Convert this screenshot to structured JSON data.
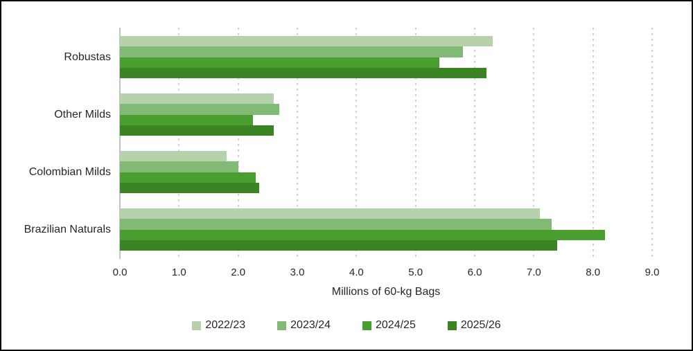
{
  "chart_data": {
    "type": "bar",
    "orientation": "horizontal",
    "title": "",
    "categories": [
      "Robustas",
      "Other Milds",
      "Colombian Milds",
      "Brazilian Naturals"
    ],
    "series": [
      {
        "name": "2022/23",
        "color": "#b6d2ad",
        "values": [
          6.3,
          2.6,
          1.8,
          7.1
        ]
      },
      {
        "name": "2023/24",
        "color": "#80ba74",
        "values": [
          5.8,
          2.7,
          2.0,
          7.3
        ]
      },
      {
        "name": "2024/25",
        "color": "#4a9e2f",
        "values": [
          5.4,
          2.25,
          2.3,
          8.2
        ]
      },
      {
        "name": "2025/26",
        "color": "#3a8423",
        "values": [
          6.2,
          2.6,
          2.35,
          7.4
        ]
      }
    ],
    "xlabel": "Millions of 60-kg Bags",
    "xlim": [
      0,
      9
    ],
    "xtick_step": 1.0,
    "xtick_labels": [
      "0.0",
      "1.0",
      "2.0",
      "3.0",
      "4.0",
      "5.0",
      "6.0",
      "7.0",
      "8.0",
      "9.0"
    ],
    "grid": "vertical-dotted",
    "legend_position": "bottom",
    "colors": {
      "axis_line": "#c3c3c3",
      "gridline": "#d4d4d4",
      "text": "#262626",
      "frame_border": "#000000"
    }
  }
}
